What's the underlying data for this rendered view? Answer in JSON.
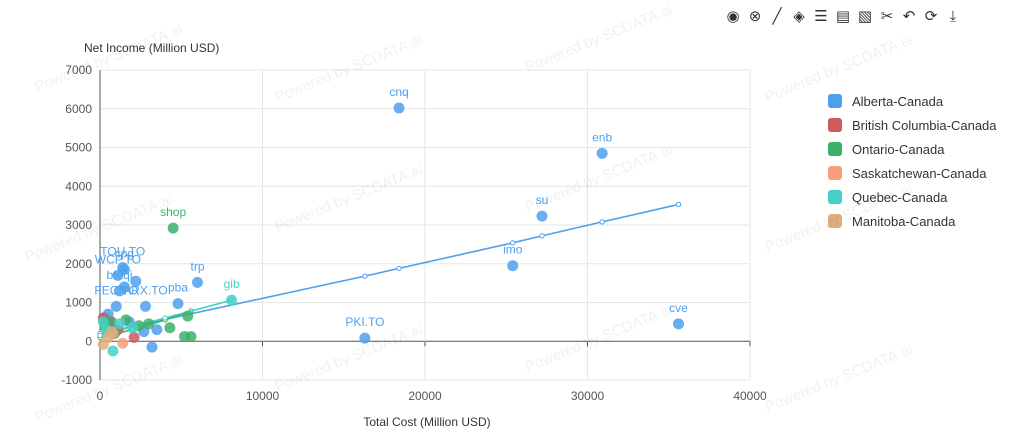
{
  "toolbar": {
    "icons": [
      "target-icon",
      "clear-icon",
      "line-icon",
      "tag-icon",
      "table-icon",
      "comment-icon",
      "filter-icon",
      "scissors-icon",
      "undo-icon",
      "refresh-icon",
      "download-icon"
    ],
    "glyphs": [
      "◉",
      "⊗",
      "╱",
      "◈",
      "☰",
      "▤",
      "▧",
      "✂",
      "↶",
      "⟳",
      "⤓"
    ]
  },
  "watermark_text": "Powered by SCDATA.ai",
  "chart_data": {
    "type": "scatter",
    "xlabel": "Total Cost (Million USD)",
    "ylabel": "Net Income (Million USD)",
    "xlim": [
      0,
      40000
    ],
    "ylim": [
      -1000,
      7000
    ],
    "x_ticks": [
      "0",
      "10000",
      "20000",
      "30000",
      "40000"
    ],
    "y_ticks": [
      "-1000",
      "0",
      "1000",
      "2000",
      "3000",
      "4000",
      "5000",
      "6000",
      "7000"
    ],
    "grid": true,
    "legend_position": "right",
    "series": [
      {
        "name": "Alberta-Canada",
        "color": "#4ea0ef",
        "points": [
          {
            "x": 18400,
            "y": 6020,
            "label": "cnq"
          },
          {
            "x": 30900,
            "y": 4850,
            "label": "enb"
          },
          {
            "x": 27200,
            "y": 3230,
            "label": "su"
          },
          {
            "x": 25400,
            "y": 1950,
            "label": "imo"
          },
          {
            "x": 35600,
            "y": 450,
            "label": "cve"
          },
          {
            "x": 16300,
            "y": 80,
            "label": "PKI.TO"
          },
          {
            "x": 6000,
            "y": 1520,
            "label": "trp"
          },
          {
            "x": 4800,
            "y": 970,
            "label": "pba"
          },
          {
            "x": 1500,
            "y": 1850,
            "label": "cpg"
          },
          {
            "x": 1400,
            "y": 1900,
            "label": "TOU.TO"
          },
          {
            "x": 1100,
            "y": 1700,
            "label": "WCP.TO"
          },
          {
            "x": 1200,
            "y": 1300,
            "label": "bteqi"
          },
          {
            "x": 1500,
            "y": 1400,
            "label": ""
          },
          {
            "x": 2200,
            "y": 1550,
            "label": ""
          },
          {
            "x": 1000,
            "y": 900,
            "label": "FEC.TO"
          },
          {
            "x": 2800,
            "y": 900,
            "label": "ARX.TO"
          },
          {
            "x": 500,
            "y": 700,
            "label": ""
          },
          {
            "x": 300,
            "y": 600,
            "label": ""
          },
          {
            "x": 2700,
            "y": 250,
            "label": ""
          },
          {
            "x": 3200,
            "y": -150,
            "label": ""
          },
          {
            "x": 3500,
            "y": 300,
            "label": ""
          },
          {
            "x": 600,
            "y": 350,
            "label": ""
          },
          {
            "x": 1800,
            "y": 500,
            "label": ""
          }
        ],
        "trend": [
          {
            "x": 0,
            "y": 200
          },
          {
            "x": 16300,
            "y": 1680
          },
          {
            "x": 18400,
            "y": 1880
          },
          {
            "x": 25400,
            "y": 2540
          },
          {
            "x": 27200,
            "y": 2720
          },
          {
            "x": 30900,
            "y": 3080
          },
          {
            "x": 35600,
            "y": 3530
          }
        ]
      },
      {
        "name": "British Columbia-Canada",
        "color": "#cd5c5c",
        "points": [
          {
            "x": 2100,
            "y": 100,
            "label": ""
          },
          {
            "x": 700,
            "y": 500,
            "label": ""
          },
          {
            "x": 400,
            "y": 450,
            "label": ""
          },
          {
            "x": 200,
            "y": 600,
            "label": ""
          },
          {
            "x": 1100,
            "y": 300,
            "label": ""
          }
        ],
        "trend": []
      },
      {
        "name": "Ontario-Canada",
        "color": "#3cb06a",
        "points": [
          {
            "x": 4500,
            "y": 2920,
            "label": "shop"
          },
          {
            "x": 5200,
            "y": 120,
            "label": ""
          },
          {
            "x": 5600,
            "y": 120,
            "label": ""
          },
          {
            "x": 4300,
            "y": 350,
            "label": ""
          },
          {
            "x": 3000,
            "y": 450,
            "label": ""
          },
          {
            "x": 5400,
            "y": 650,
            "label": ""
          },
          {
            "x": 600,
            "y": 500,
            "label": ""
          },
          {
            "x": 300,
            "y": 400,
            "label": ""
          },
          {
            "x": 900,
            "y": 200,
            "label": ""
          },
          {
            "x": 1600,
            "y": 550,
            "label": ""
          },
          {
            "x": 2400,
            "y": 400,
            "label": ""
          }
        ],
        "trend": [
          {
            "x": 0,
            "y": 100
          },
          {
            "x": 2000,
            "y": 300
          },
          {
            "x": 4000,
            "y": 550
          },
          {
            "x": 5600,
            "y": 780
          }
        ]
      },
      {
        "name": "Saskatchewan-Canada",
        "color": "#f5a07a",
        "points": [
          {
            "x": 1400,
            "y": -50,
            "label": ""
          },
          {
            "x": 800,
            "y": 200,
            "label": ""
          }
        ],
        "trend": []
      },
      {
        "name": "Quebec-Canada",
        "color": "#45d0c8",
        "points": [
          {
            "x": 8100,
            "y": 1060,
            "label": "gib"
          },
          {
            "x": 800,
            "y": -250,
            "label": ""
          },
          {
            "x": 400,
            "y": 300,
            "label": ""
          },
          {
            "x": 1200,
            "y": 450,
            "label": ""
          },
          {
            "x": 200,
            "y": 500,
            "label": ""
          },
          {
            "x": 2000,
            "y": 350,
            "label": ""
          }
        ],
        "trend": [
          {
            "x": 0,
            "y": 150
          },
          {
            "x": 4000,
            "y": 600
          },
          {
            "x": 8100,
            "y": 1060
          }
        ]
      },
      {
        "name": "Manitoba-Canada",
        "color": "#deae7c",
        "points": [
          {
            "x": 200,
            "y": -80,
            "label": ""
          },
          {
            "x": 500,
            "y": 100,
            "label": ""
          },
          {
            "x": 700,
            "y": 250,
            "label": ""
          }
        ],
        "trend": []
      }
    ]
  }
}
